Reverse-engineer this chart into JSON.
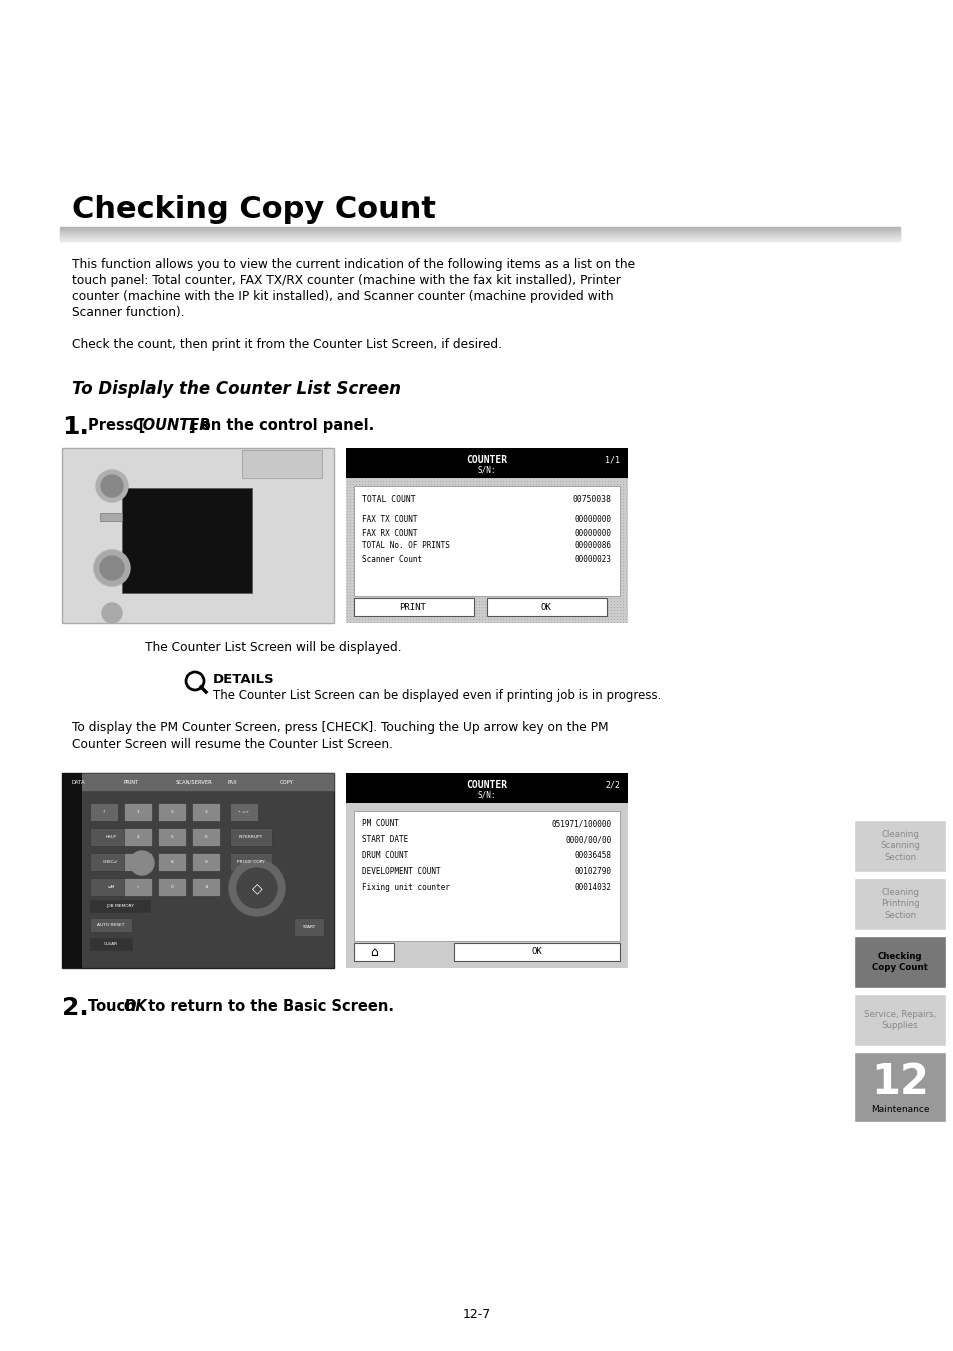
{
  "title": "Checking Copy Count",
  "title_fontsize": 22,
  "body_text1_lines": [
    "This function allows you to view the current indication of the following items as a list on the",
    "touch panel: Total counter, FAX TX/RX counter (machine with the fax kit installed), Printer",
    "counter (machine with the IP kit installed), and Scanner counter (machine provided with",
    "Scanner function)."
  ],
  "body_text2": "Check the count, then print it from the Counter List Screen, if desired.",
  "subtitle": "To Displaly the Counter List Screen",
  "caption1": "The Counter List Screen will be displayed.",
  "details_title": "DETAILS",
  "details_text": "The Counter List Screen can be displayed even if printing job is in progress.",
  "para_text_lines": [
    "To display the PM Counter Screen, press [CHECK]. Touching the Up arrow key on the PM",
    "Counter Screen will resume the Counter List Screen."
  ],
  "step2_text1": "Touch ",
  "step2_text2": "OK",
  "step2_text3": " to return to the Basic Screen.",
  "page_num": "12-7",
  "counter_screen1_title": "COUNTER",
  "counter_screen1_sub": "S/N:",
  "counter_screen1_page": "1/1",
  "counter_screen1_lines": [
    [
      "TOTAL COUNT",
      "00750038"
    ],
    [
      "",
      ""
    ],
    [
      "FAX TX COUNT",
      "00000000"
    ],
    [
      "FAX RX COUNT",
      "00000000"
    ],
    [
      "TOTAL No. OF PRINTS",
      "00000086"
    ],
    [
      "Scanner Count",
      "00000023"
    ]
  ],
  "counter_screen2_title": "COUNTER",
  "counter_screen2_sub": "S/N:",
  "counter_screen2_page": "2/2",
  "counter_screen2_lines": [
    [
      "PM COUNT",
      "051971/100000"
    ],
    [
      "START DATE",
      "0000/00/00"
    ],
    [
      "DRUM COUNT",
      "00036458"
    ],
    [
      "DEVELOPMENT COUNT",
      "00102790"
    ],
    [
      "Fixing unit counter",
      "00014032"
    ]
  ],
  "sidebar_items": [
    {
      "text": "Cleaning\nScanning\nSection",
      "active": false
    },
    {
      "text": "Cleaning\nPrintning\nSection",
      "active": false
    },
    {
      "text": "Checking\nCopy Count",
      "active": true
    },
    {
      "text": "Service, Repairs,\nSupplies",
      "active": false
    }
  ],
  "chapter_num": "12",
  "chapter_label": "Maintenance",
  "bg_color": "#ffffff"
}
